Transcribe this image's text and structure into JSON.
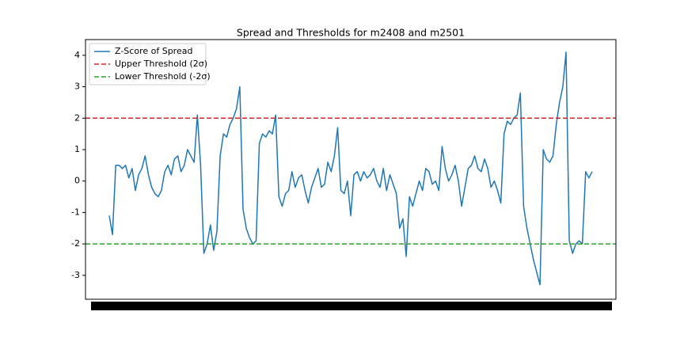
{
  "chart_data": {
    "type": "line",
    "title": "Spread and Thresholds for m2408 and m2501",
    "series": [
      {
        "name": "Z-Score of Spread",
        "color": "#1f77b4",
        "values": [
          -1.1,
          -1.7,
          0.5,
          0.5,
          0.4,
          0.5,
          0.1,
          0.4,
          -0.3,
          0.2,
          0.4,
          0.8,
          0.2,
          -0.2,
          -0.4,
          -0.5,
          -0.3,
          0.3,
          0.5,
          0.2,
          0.7,
          0.8,
          0.3,
          0.5,
          1.0,
          0.8,
          0.6,
          2.1,
          0.5,
          -2.3,
          -2.0,
          -1.4,
          -2.2,
          -1.6,
          0.8,
          1.5,
          1.4,
          1.8,
          2.0,
          2.3,
          3.0,
          -0.9,
          -1.5,
          -1.8,
          -2.0,
          -1.9,
          1.2,
          1.5,
          1.4,
          1.6,
          1.5,
          2.1,
          -0.5,
          -0.8,
          -0.4,
          -0.3,
          0.3,
          -0.2,
          0.1,
          0.2,
          -0.3,
          -0.7,
          -0.2,
          0.1,
          0.4,
          -0.2,
          -0.1,
          0.6,
          0.3,
          0.8,
          1.7,
          -0.3,
          -0.4,
          0.0,
          -1.1,
          0.2,
          0.3,
          0.0,
          0.3,
          0.1,
          0.2,
          0.4,
          0.0,
          -0.2,
          0.4,
          -0.3,
          0.2,
          -0.1,
          -0.4,
          -1.5,
          -1.2,
          -2.4,
          -0.5,
          -0.8,
          -0.4,
          0.0,
          -0.3,
          0.4,
          0.3,
          -0.1,
          0.0,
          -0.3,
          1.1,
          0.4,
          0.0,
          0.2,
          0.5,
          0.0,
          -0.8,
          -0.2,
          0.4,
          0.5,
          0.8,
          0.4,
          0.3,
          0.7,
          0.4,
          -0.2,
          0.0,
          -0.3,
          -0.7,
          1.5,
          1.9,
          1.8,
          2.0,
          2.1,
          2.8,
          -0.8,
          -1.5,
          -2.0,
          -2.5,
          -2.9,
          -3.3,
          1.0,
          0.7,
          0.6,
          0.8,
          1.8,
          2.5,
          3.0,
          4.1,
          -1.9,
          -2.3,
          -2.0,
          -1.9,
          -2.0,
          0.3,
          0.1,
          0.3
        ]
      }
    ],
    "hlines": [
      {
        "name": "Upper Threshold (2σ)",
        "color": "#d62728",
        "value": 2
      },
      {
        "name": "Lower Threshold (-2σ)",
        "color": "#2ca02c",
        "value": -2
      }
    ],
    "ylim": [
      -3.76,
      4.5
    ],
    "yticks": [
      -3,
      -2,
      -1,
      0,
      1,
      2,
      3,
      4
    ],
    "legend": "upper left"
  }
}
